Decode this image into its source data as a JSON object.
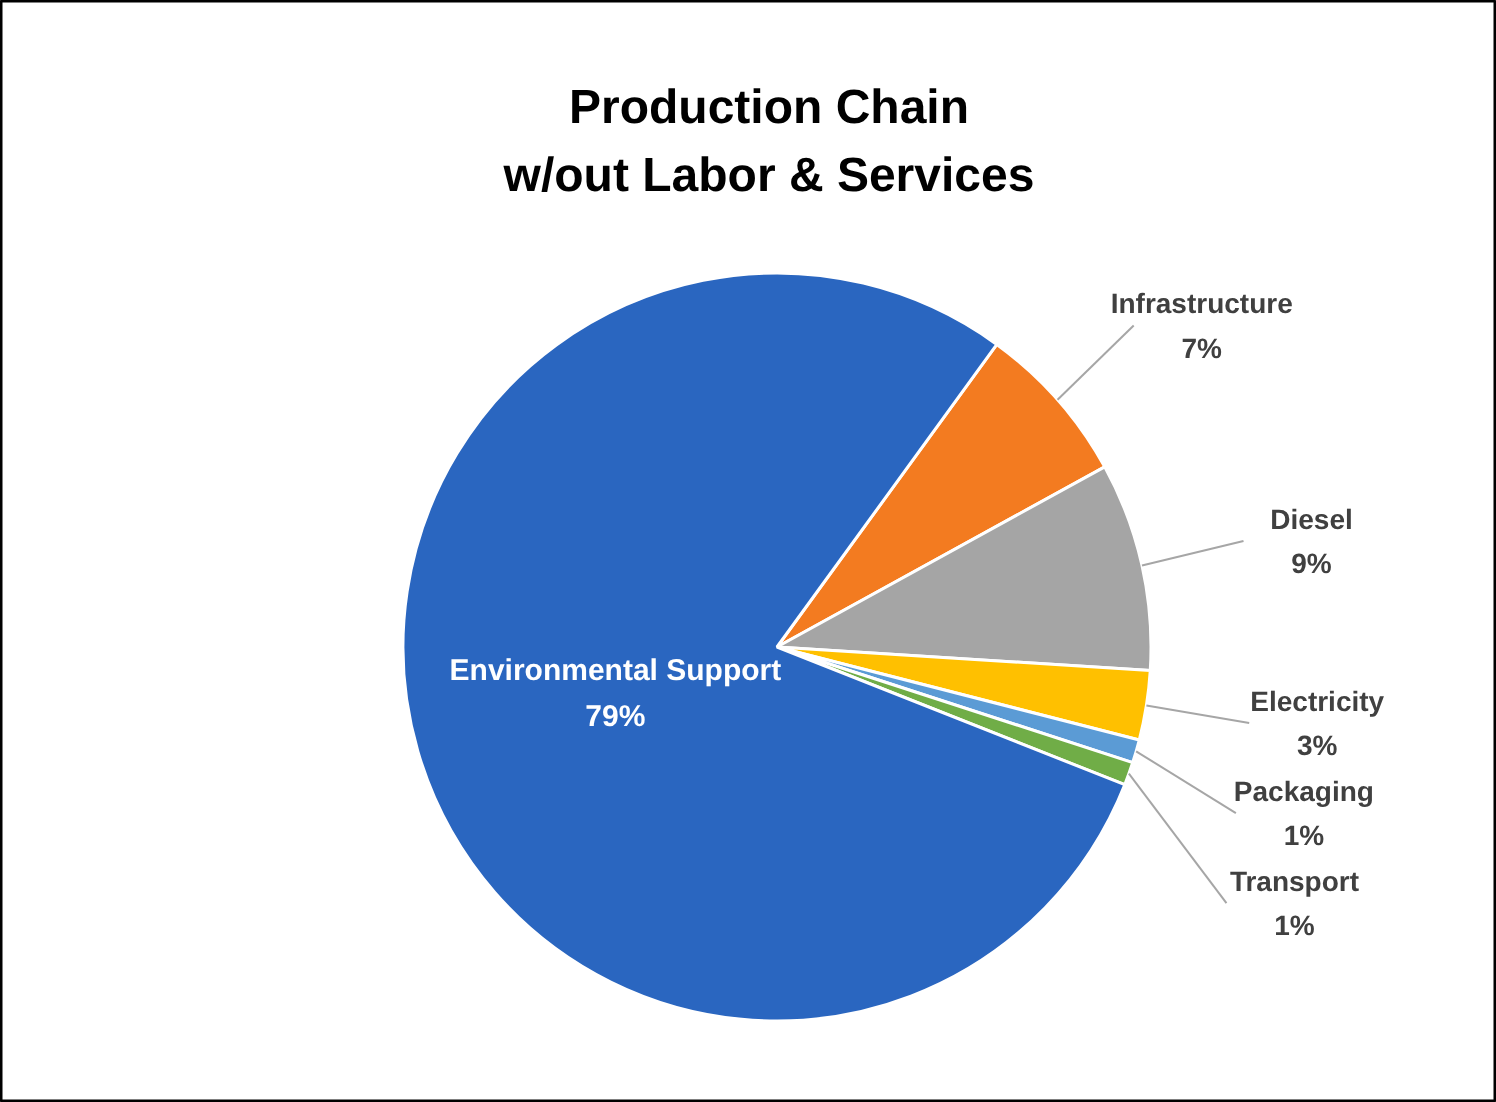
{
  "chart_data": {
    "type": "pie",
    "title": "Production Chain\nw/out Labor & Services",
    "categories": [
      "Infrastructure",
      "Diesel",
      "Electricity",
      "Packaging",
      "Transport",
      "Environmental Support"
    ],
    "values": [
      7,
      9,
      3,
      1,
      1,
      79
    ],
    "colors": [
      "#f37b20",
      "#a5a5a5",
      "#ffc000",
      "#5b9bd5",
      "#70ad47",
      "#2a66c0"
    ],
    "value_labels": [
      "7%",
      "9%",
      "3%",
      "1%",
      "1%",
      "79%"
    ],
    "legend": false
  }
}
